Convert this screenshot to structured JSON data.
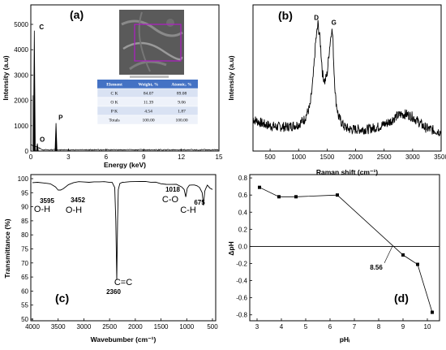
{
  "chart_data": [
    {
      "panel": "(a)",
      "type": "bar",
      "xlabel": "Energy (keV)",
      "ylabel": "Intensity (a.u)",
      "xlim": [
        0,
        15
      ],
      "ylim": [
        0,
        5000
      ],
      "xticks": [
        0,
        3,
        6,
        9,
        12,
        15
      ],
      "yticks": [
        0,
        1000,
        2000,
        3000,
        4000,
        5000
      ],
      "peaks": [
        {
          "label": "C",
          "x": 0.28,
          "y": 4750
        },
        {
          "label": "O",
          "x": 0.52,
          "y": 300
        },
        {
          "label": "P",
          "x": 2.01,
          "y": 1100
        }
      ],
      "table": {
        "headers": [
          "Element",
          "Weight, %",
          "Atomic, %"
        ],
        "rows": [
          [
            "C K",
            "84.07",
            "89.08"
          ],
          [
            "O K",
            "11.39",
            "9.06"
          ],
          [
            "P K",
            "4.54",
            "1.87"
          ],
          [
            "Totals",
            "100.00",
            "100.00"
          ]
        ]
      }
    },
    {
      "panel": "(b)",
      "type": "line",
      "xlabel": "Raman shift (cm⁻¹)",
      "ylabel": "Intensity (a.u)",
      "xlim": [
        200,
        3500
      ],
      "xticks": [
        500,
        1000,
        1500,
        2000,
        2500,
        3000,
        3500
      ],
      "series": [
        {
          "x": [
            200,
            400,
            600,
            800,
            1000,
            1100,
            1200,
            1250,
            1300,
            1340,
            1380,
            1420,
            1460,
            1500,
            1540,
            1580,
            1600,
            1620,
            1650,
            1700,
            1800,
            1900,
            2000,
            2200,
            2400,
            2600,
            2700,
            2800,
            2900,
            3000,
            3100,
            3200,
            3300,
            3500
          ],
          "y": [
            12,
            10,
            9,
            9,
            10,
            12,
            17,
            27,
            43,
            50,
            43,
            30,
            27,
            30,
            40,
            48,
            45,
            32,
            20,
            13,
            9,
            8,
            8,
            8,
            9,
            11,
            13,
            14,
            14,
            13,
            11,
            9,
            8,
            7
          ]
        }
      ],
      "peaks": [
        {
          "label": "D",
          "x": 1340,
          "y": 50
        },
        {
          "label": "G",
          "x": 1590,
          "y": 48
        }
      ]
    },
    {
      "panel": "(c)",
      "type": "line",
      "xlabel": "Wavebumber (cm⁻¹)",
      "ylabel": "Transmittance (%)",
      "xlim": [
        4000,
        500
      ],
      "ylim": [
        50,
        100
      ],
      "xticks": [
        4000,
        3500,
        3000,
        2500,
        2000,
        1500,
        1000,
        500
      ],
      "yticks": [
        50,
        55,
        60,
        65,
        70,
        75,
        80,
        85,
        90,
        95,
        100
      ],
      "series": [
        {
          "x": [
            4000,
            3900,
            3800,
            3700,
            3650,
            3595,
            3550,
            3500,
            3452,
            3400,
            3300,
            3200,
            3100,
            3000,
            2900,
            2800,
            2700,
            2600,
            2500,
            2450,
            2400,
            2380,
            2360,
            2345,
            2330,
            2300,
            2250,
            2200,
            2100,
            2000,
            1900,
            1800,
            1700,
            1600,
            1500,
            1400,
            1300,
            1200,
            1100,
            1050,
            1018,
            990,
            950,
            900,
            850,
            800,
            750,
            700,
            675,
            650,
            620,
            600,
            550,
            500
          ],
          "y": [
            98.5,
            98.5,
            98.6,
            98.5,
            98.3,
            97.4,
            97.2,
            96.0,
            95.8,
            96.5,
            97.8,
            98.4,
            98.7,
            98.8,
            98.8,
            98.9,
            98.9,
            98.9,
            98.8,
            98.5,
            97.0,
            85.0,
            64.0,
            85.0,
            96.0,
            98.5,
            98.8,
            98.8,
            98.9,
            98.9,
            98.9,
            98.9,
            98.8,
            98.6,
            98.4,
            98.2,
            98.0,
            97.8,
            97.3,
            96.0,
            93.5,
            96.5,
            97.5,
            97.8,
            97.6,
            97.3,
            96.8,
            95.0,
            90.5,
            95.5,
            97.0,
            97.5,
            96.5,
            96.0
          ]
        }
      ],
      "annotations": [
        {
          "value": "3595",
          "group": "O-H"
        },
        {
          "value": "3452",
          "group": "O-H"
        },
        {
          "value": "2360",
          "group": "C=C"
        },
        {
          "value": "1018",
          "group": "C-O"
        },
        {
          "value": "675",
          "group": "C-H"
        }
      ]
    },
    {
      "panel": "(d)",
      "type": "line",
      "xlabel": "pHᵢ",
      "ylabel": "ΔpH",
      "xlim": [
        2.7,
        10.5
      ],
      "ylim": [
        -0.85,
        0.82
      ],
      "xticks": [
        3,
        4,
        5,
        6,
        7,
        8,
        9,
        10
      ],
      "yticks": [
        -0.8,
        -0.6,
        -0.4,
        -0.2,
        0.0,
        0.2,
        0.4,
        0.6,
        0.8
      ],
      "series": [
        {
          "x": [
            3.1,
            3.9,
            4.6,
            6.3,
            9.0,
            9.6,
            10.2
          ],
          "y": [
            0.69,
            0.58,
            0.58,
            0.6,
            -0.1,
            -0.21,
            -0.77
          ]
        }
      ],
      "zero_line": true,
      "annotation": "8.56"
    }
  ],
  "colors": {
    "axis": "#000000",
    "line": "#000000",
    "table_header": "#4472c4",
    "table_row_alt": "#d9e2f3",
    "table_row": "#eef2fa",
    "sem_image": "#555555",
    "sem_box": "#b01cc6"
  }
}
